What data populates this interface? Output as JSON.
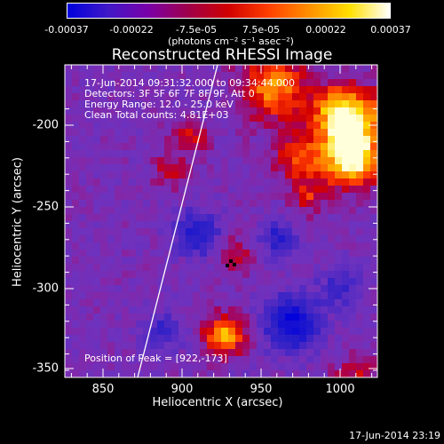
{
  "colorbar": {
    "tick_labels": [
      "-0.00037",
      "-0.00022",
      "-7.5e-05",
      "7.5e-05",
      "0.00022",
      "0.00037"
    ],
    "units": "(photons cm⁻² s⁻¹ asec⁻²)",
    "colors": [
      "#0000dc",
      "#4018c8",
      "#7a00a8",
      "#a0004a",
      "#d00000",
      "#ff4000",
      "#ff9000",
      "#ffe000",
      "#ffffff"
    ]
  },
  "plot": {
    "title": "Reconstructed RHESSI Image",
    "info_lines": [
      "17-Jun-2014 09:31:32.000 to 09:34:44.000",
      "Detectors: 3F 5F 6F 7F 8F 9F, Att 0",
      "Energy Range: 12.0 - 25.0 keV",
      "Clean      Total counts: 4.81E+03"
    ],
    "peak_text": "Position of Peak = [922,-173]",
    "x_ticks": [
      "850",
      "900",
      "950",
      "1000"
    ],
    "y_ticks": [
      "-200",
      "-250",
      "-300",
      "-350"
    ],
    "x_label": "Heliocentric X (arcsec)",
    "y_label": "Heliocentric Y (arcsec)"
  },
  "footer": {
    "date": "17-Jun-2014 23:19"
  }
}
